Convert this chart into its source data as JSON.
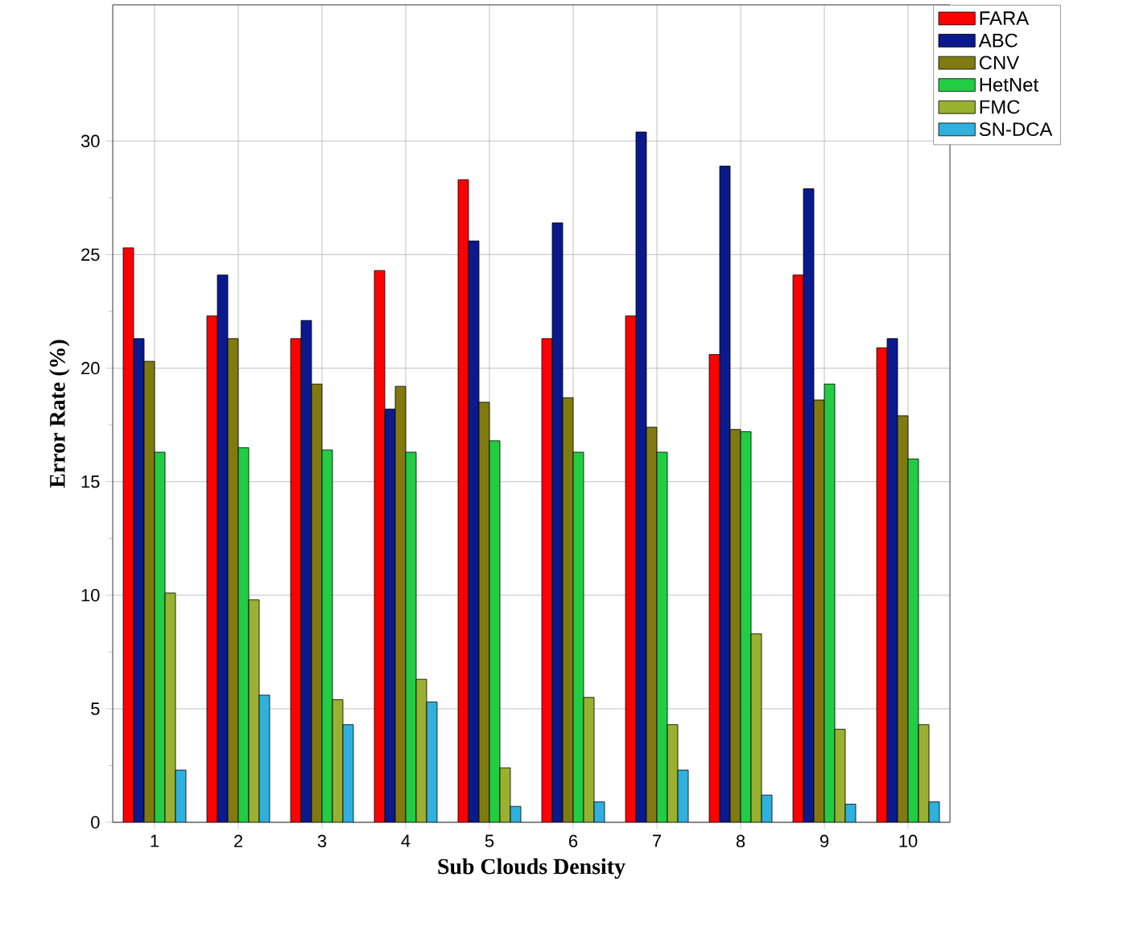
{
  "chart_data": {
    "type": "bar",
    "xlabel": "Sub Clouds Density",
    "ylabel": "Error Rate (%)",
    "categories": [
      "1",
      "2",
      "3",
      "4",
      "5",
      "6",
      "7",
      "8",
      "9",
      "10"
    ],
    "series": [
      {
        "name": "FARA",
        "color": "#ff0000",
        "values": [
          25.3,
          22.3,
          21.3,
          24.3,
          28.3,
          21.3,
          22.3,
          20.6,
          24.1,
          20.9
        ]
      },
      {
        "name": "ABC",
        "color": "#0a1a8c",
        "values": [
          21.3,
          24.1,
          22.1,
          18.2,
          25.6,
          26.4,
          30.4,
          28.9,
          27.9,
          21.3
        ]
      },
      {
        "name": "CNV",
        "color": "#807a10",
        "values": [
          20.3,
          21.3,
          19.3,
          19.2,
          18.5,
          18.7,
          17.4,
          17.3,
          18.6,
          17.9
        ]
      },
      {
        "name": "HetNet",
        "color": "#22cc44",
        "values": [
          16.3,
          16.5,
          16.4,
          16.3,
          16.8,
          16.3,
          16.3,
          17.2,
          19.3,
          16.0
        ]
      },
      {
        "name": "FMC",
        "color": "#9ab030",
        "values": [
          10.1,
          9.8,
          5.4,
          6.3,
          2.4,
          5.5,
          4.3,
          8.3,
          4.1,
          4.3
        ]
      },
      {
        "name": "SN-DCA",
        "color": "#30b0dd",
        "values": [
          2.3,
          5.6,
          4.3,
          5.3,
          0.7,
          0.9,
          2.3,
          1.2,
          0.8,
          0.9
        ]
      }
    ],
    "ylim": [
      0,
      36
    ],
    "yticks": [
      0,
      5,
      10,
      15,
      20,
      25,
      30
    ],
    "grid": true,
    "legend": "top right"
  }
}
